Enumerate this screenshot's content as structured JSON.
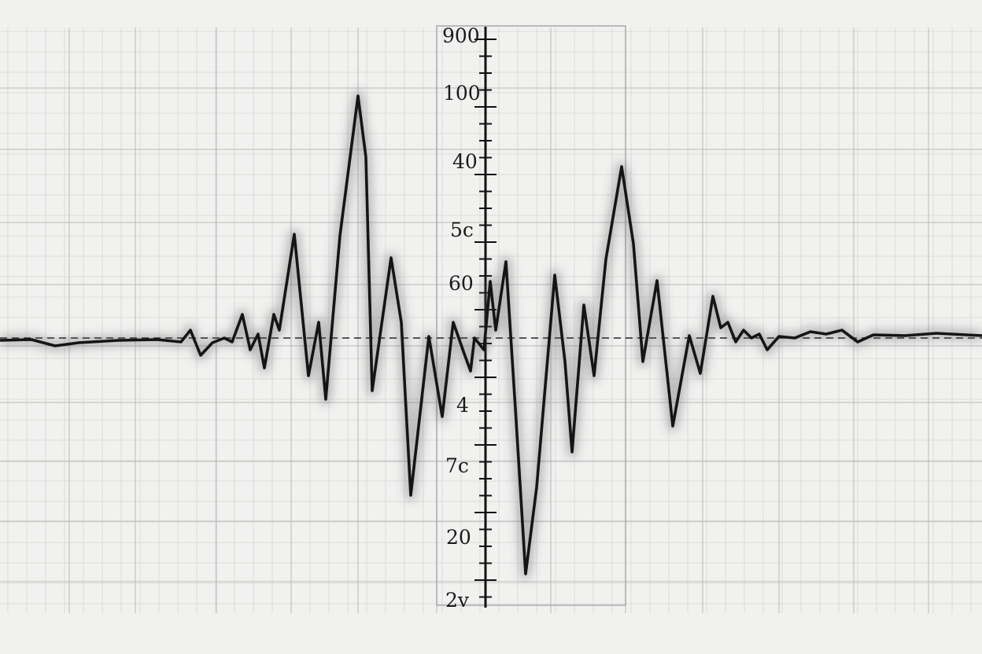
{
  "axis": {
    "labels": [
      "900",
      "100",
      "40",
      "5c",
      "60",
      "4",
      "7c",
      "20",
      "2v"
    ]
  }
}
